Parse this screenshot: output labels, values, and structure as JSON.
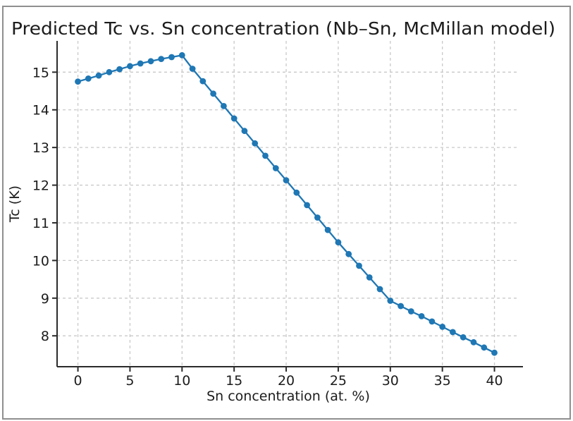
{
  "colors": {
    "line": "#1f77b4",
    "grid": "#c9c9c9",
    "text": "#1c1c1c",
    "spine": "#2b2b2b",
    "frame_border": "#8f8f8f",
    "background": "#ffffff"
  },
  "chart_data": {
    "type": "line",
    "title": "Predicted Tc vs. Sn concentration (Nb–Sn, McMillan model)",
    "xlabel": "Sn concentration (at. %)",
    "ylabel": "Tc (K)",
    "marker": "o",
    "grid": true,
    "grid_style": "dashed",
    "legend": "none",
    "xlim": [
      -2.0,
      42.4
    ],
    "ylim": [
      7.18,
      15.83
    ],
    "xticks": [
      0,
      5,
      10,
      15,
      20,
      25,
      30,
      35,
      40
    ],
    "yticks": [
      8,
      9,
      10,
      11,
      12,
      13,
      14,
      15
    ],
    "x": [
      0,
      1,
      2,
      3,
      4,
      5,
      6,
      7,
      8,
      9,
      10,
      11,
      12,
      13,
      14,
      15,
      16,
      17,
      18,
      19,
      20,
      21,
      22,
      23,
      24,
      25,
      26,
      27,
      28,
      29,
      30,
      31,
      32,
      33,
      34,
      35,
      36,
      37,
      38,
      39,
      40
    ],
    "series": [
      {
        "name": "Predicted Tc",
        "values": [
          14.75,
          14.83,
          14.91,
          15.0,
          15.08,
          15.16,
          15.23,
          15.29,
          15.35,
          15.4,
          15.45,
          15.09,
          14.76,
          14.43,
          14.1,
          13.77,
          13.44,
          13.11,
          12.78,
          12.45,
          12.13,
          11.8,
          11.47,
          11.14,
          10.81,
          10.48,
          10.17,
          9.86,
          9.55,
          9.24,
          8.93,
          8.79,
          8.65,
          8.52,
          8.38,
          8.24,
          8.1,
          7.96,
          7.83,
          7.69,
          7.55
        ]
      }
    ],
    "annotations": {
      "peak_x": 10,
      "peak_y": 15.45
    }
  }
}
